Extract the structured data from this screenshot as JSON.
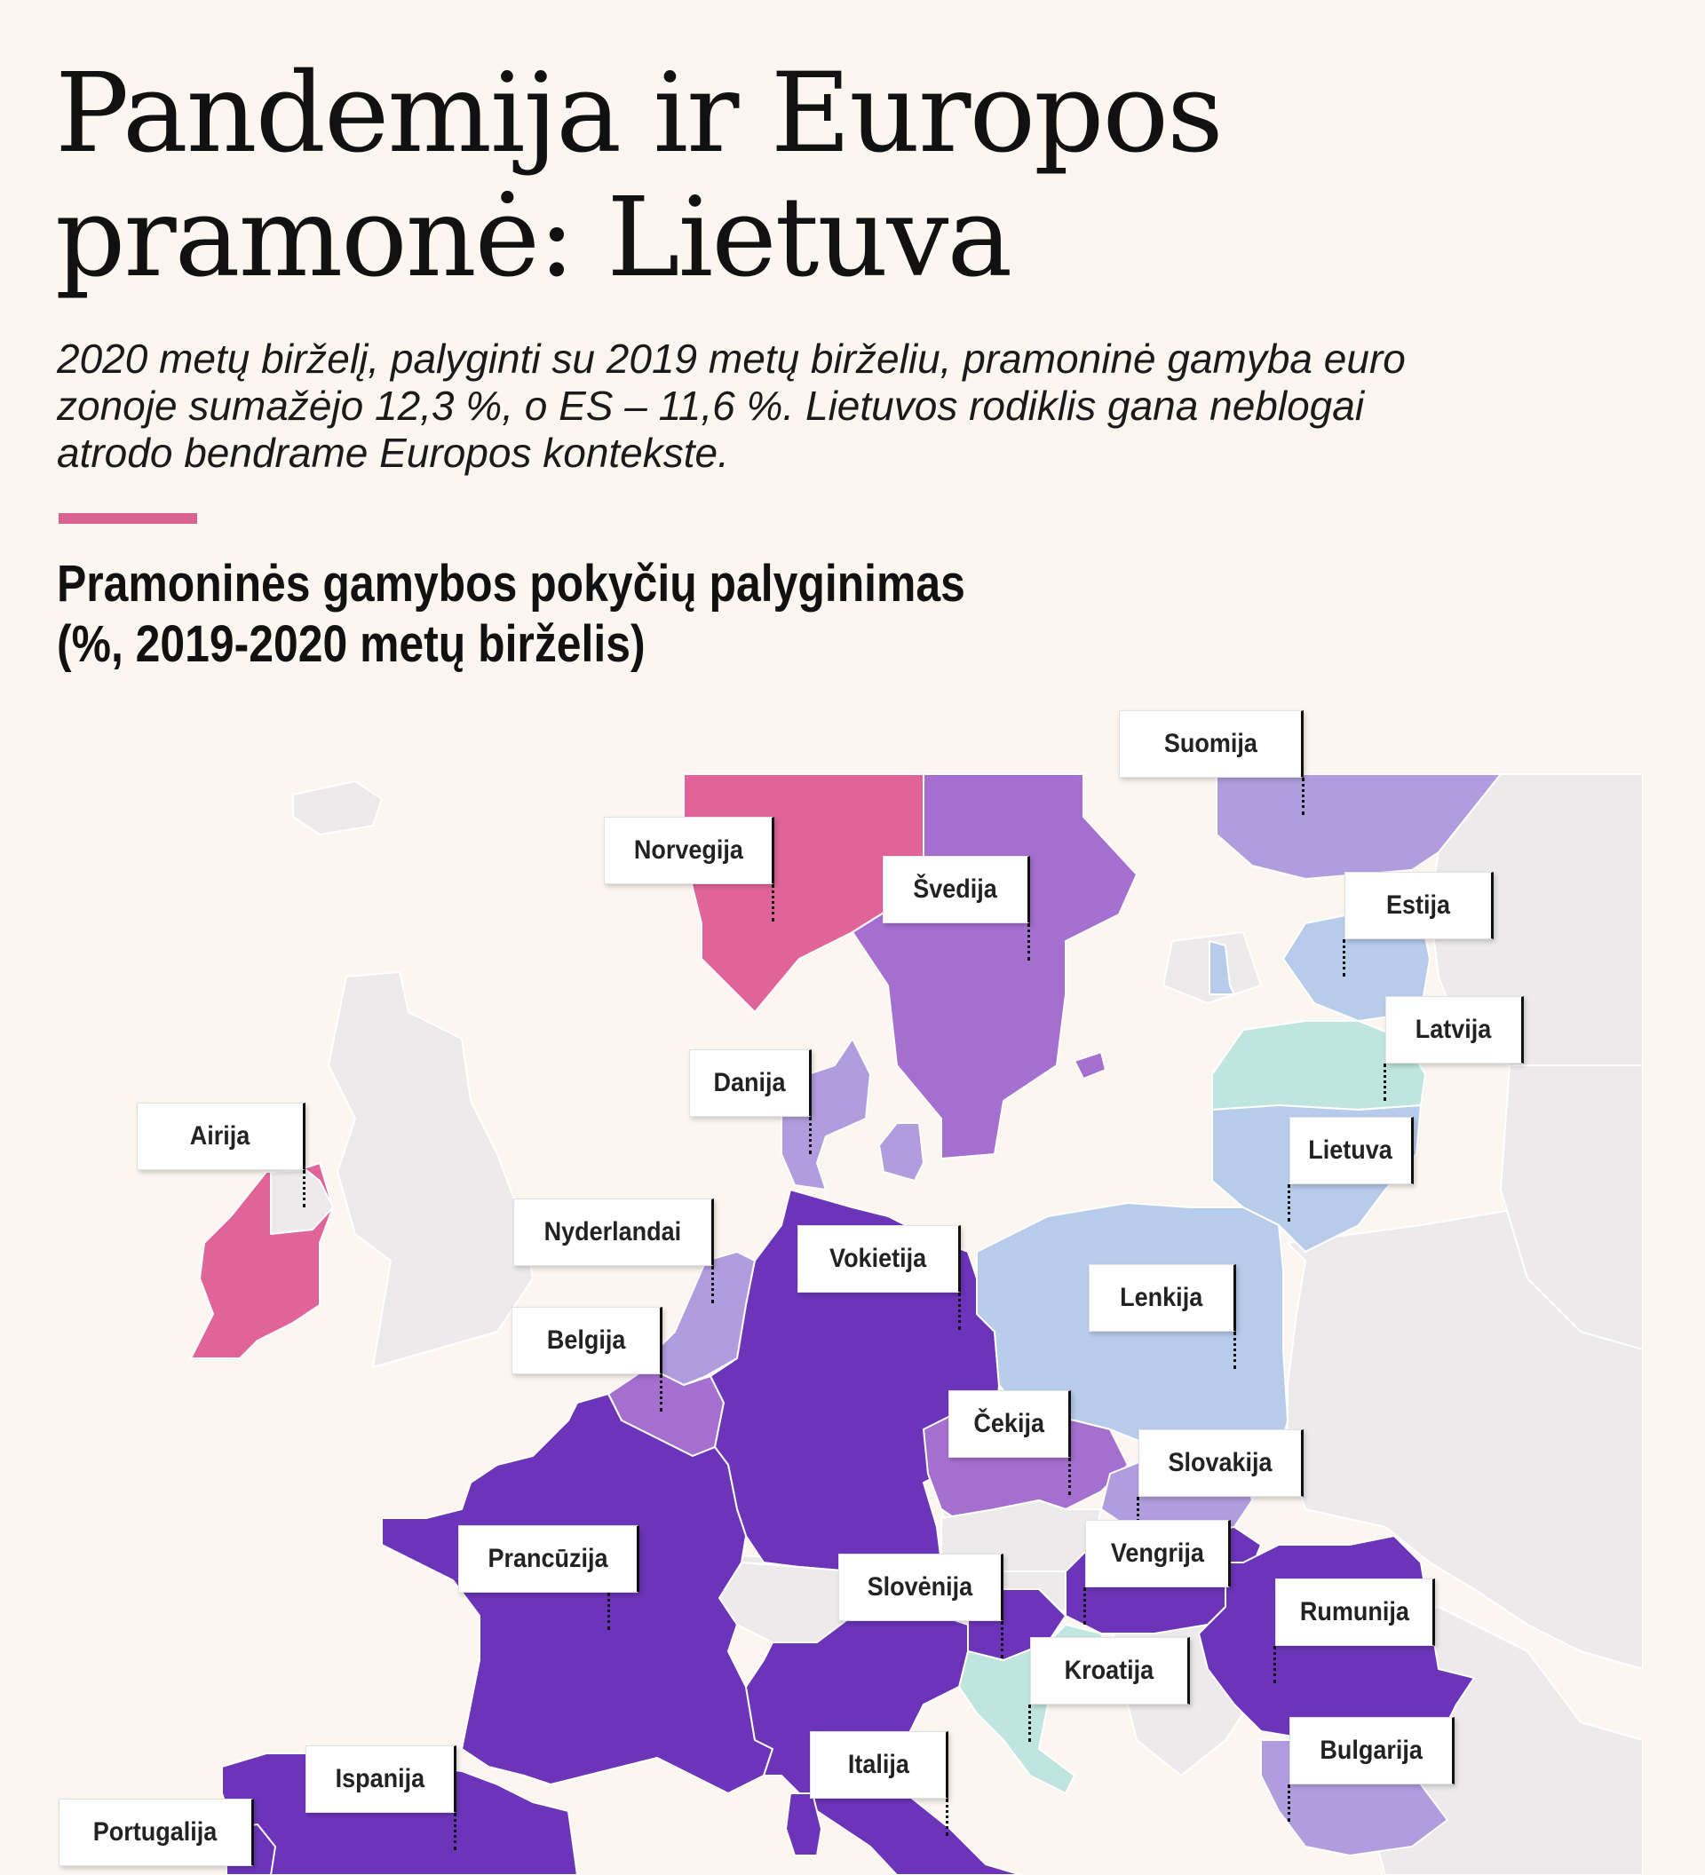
{
  "header": {
    "title": "Pandemija ir Europos\npramonė: Lietuva",
    "lead": "2020 metų birželį, palyginti su 2019 metų birželiu, pramoninė gamyba euro zonoje sumažėjo 12,3 %, o ES – 11,6 %. Lietuvos rodiklis gana neblogai atrodo bendrame Europos kontekste.",
    "accent_color": "#dc5f91"
  },
  "chart": {
    "subtitle": "Pramoninės gamybos pokyčių palyginimas\n(%, 2019-2020 metų birželis)"
  },
  "map": {
    "countries": [
      {
        "name": "Suomija",
        "color": "#b19ddd"
      },
      {
        "name": "Norvegija",
        "color": "#e0649a"
      },
      {
        "name": "Švedija",
        "color": "#a56fcf"
      },
      {
        "name": "Estija",
        "color": "#b7cbeb"
      },
      {
        "name": "Latvija",
        "color": "#bfe6de"
      },
      {
        "name": "Danija",
        "color": "#b19ddd"
      },
      {
        "name": "Airija",
        "color": "#e0649a"
      },
      {
        "name": "Lietuva",
        "color": "#b7cbeb"
      },
      {
        "name": "Nyderlandai",
        "color": "#b19ddd"
      },
      {
        "name": "Vokietija",
        "color": "#6c35b9"
      },
      {
        "name": "Lenkija",
        "color": "#b7cbeb"
      },
      {
        "name": "Belgija",
        "color": "#a56fcf"
      },
      {
        "name": "Čekija",
        "color": "#a56fcf"
      },
      {
        "name": "Slovakija",
        "color": "#b19ddd"
      },
      {
        "name": "Prancūzija",
        "color": "#6c35b9"
      },
      {
        "name": "Vengrija",
        "color": "#6c35b9"
      },
      {
        "name": "Slovėnija",
        "color": "#6c35b9"
      },
      {
        "name": "Rumunija",
        "color": "#6c35b9"
      },
      {
        "name": "Kroatija",
        "color": "#bfe6de"
      },
      {
        "name": "Bulgarija",
        "color": "#b19ddd"
      },
      {
        "name": "Italija",
        "color": "#6c35b9"
      },
      {
        "name": "Ispanija",
        "color": "#6c35b9"
      },
      {
        "name": "Portugalija",
        "color": "#6c35b9"
      }
    ],
    "no_data_color": "#eceaea"
  }
}
